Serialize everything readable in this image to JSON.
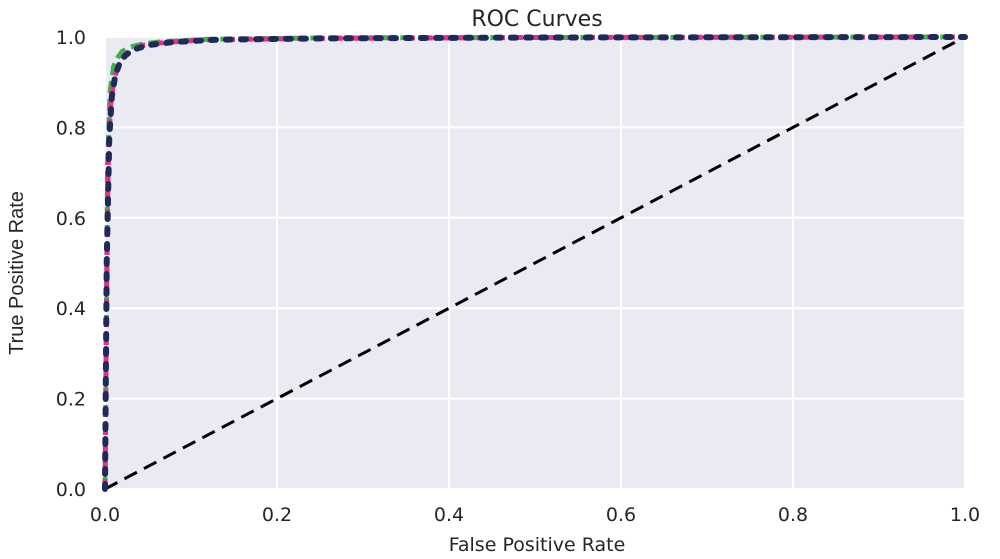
{
  "chart_data": {
    "type": "line",
    "title": "ROC Curves",
    "xlabel": "False Positive Rate",
    "ylabel": "True Positive Rate",
    "xlim": [
      0.0,
      1.0
    ],
    "ylim": [
      0.0,
      1.0
    ],
    "xticks": [
      "0.0",
      "0.2",
      "0.4",
      "0.6",
      "0.8",
      "1.0"
    ],
    "yticks": [
      "0.0",
      "0.2",
      "0.4",
      "0.6",
      "0.8",
      "1.0"
    ],
    "grid": true,
    "background": "#eaeaf2",
    "series": [
      {
        "name": "green-curve",
        "color": "#3cb44b",
        "style": "dashed",
        "x": [
          0,
          0.003,
          0.006,
          0.01,
          0.015,
          0.02,
          0.03,
          0.045,
          0.07,
          0.12,
          0.25,
          0.5,
          1.0
        ],
        "y": [
          0,
          0.72,
          0.88,
          0.935,
          0.955,
          0.968,
          0.978,
          0.985,
          0.99,
          0.995,
          0.998,
          0.999,
          1.0
        ]
      },
      {
        "name": "pink-curve",
        "color": "#e8317f",
        "style": "dashed",
        "x": [
          0,
          0.002,
          0.004,
          0.007,
          0.011,
          0.016,
          0.022,
          0.03,
          0.045,
          0.07,
          0.12,
          0.25,
          0.5,
          1.0
        ],
        "y": [
          0,
          0.45,
          0.75,
          0.86,
          0.91,
          0.94,
          0.958,
          0.972,
          0.982,
          0.988,
          0.994,
          0.997,
          0.999,
          1.0
        ]
      },
      {
        "name": "navy-curve",
        "color": "#1f2a5a",
        "style": "dotted",
        "x": [
          0,
          0.002,
          0.005,
          0.008,
          0.012,
          0.017,
          0.024,
          0.033,
          0.05,
          0.08,
          0.13,
          0.25,
          0.5,
          1.0
        ],
        "y": [
          0,
          0.5,
          0.78,
          0.87,
          0.915,
          0.942,
          0.96,
          0.972,
          0.982,
          0.989,
          0.994,
          0.997,
          0.999,
          1.0
        ]
      },
      {
        "name": "chance-line",
        "color": "#000000",
        "style": "dashed",
        "x": [
          0,
          1
        ],
        "y": [
          0,
          1
        ]
      }
    ]
  }
}
